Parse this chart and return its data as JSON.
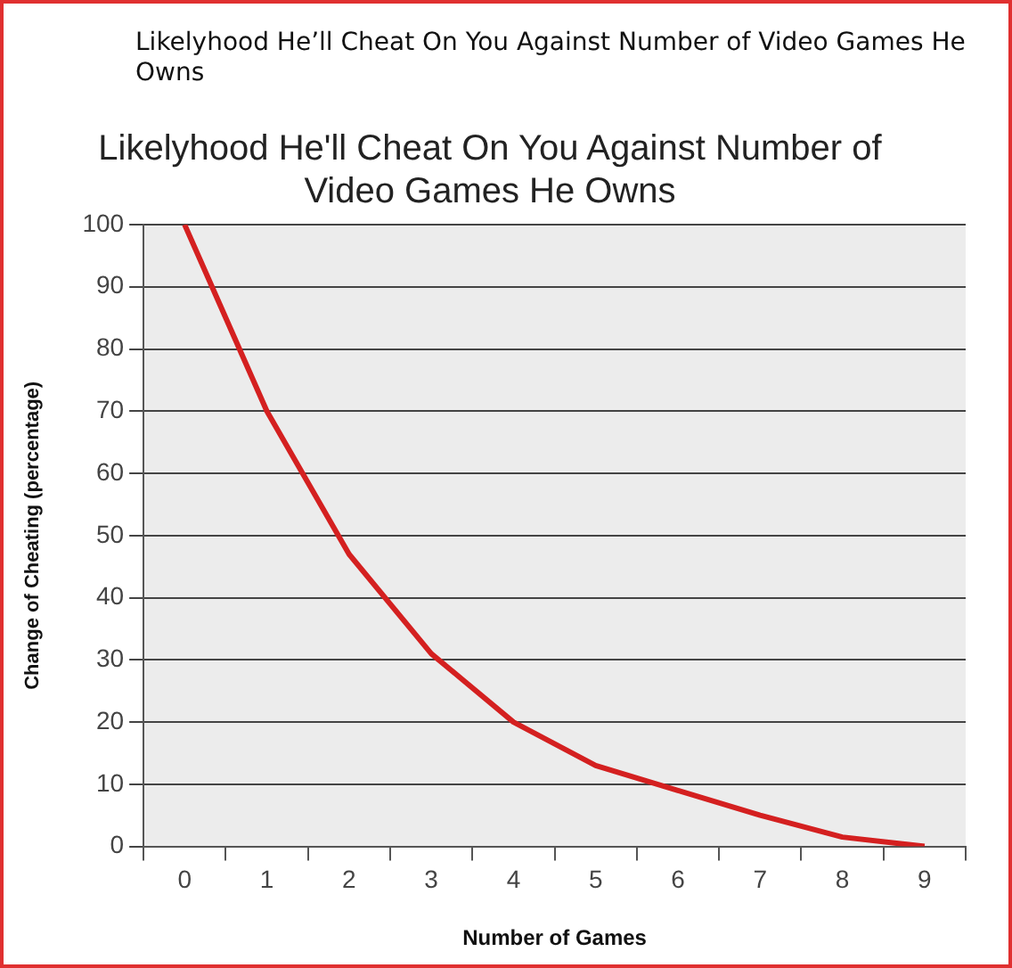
{
  "chart_data": {
    "type": "line",
    "title": "Likelyhood He'll Cheat On You Against Number of Video Games He Owns",
    "annotations": [
      "Likelyhood He’ll Cheat On You Against Number of Video Games He Owns"
    ],
    "xlabel": "Number of Games",
    "ylabel": "Change of Cheating (percentage)",
    "categories": [
      "0",
      "1",
      "2",
      "3",
      "4",
      "5",
      "6",
      "7",
      "8",
      "9"
    ],
    "series": [
      {
        "color": "#d42020",
        "values": [
          100,
          70,
          47,
          31,
          20,
          13,
          9,
          5,
          1.5,
          0
        ]
      }
    ],
    "ylim": [
      0,
      100
    ],
    "yticks": [
      0,
      10,
      20,
      30,
      40,
      50,
      60,
      70,
      80,
      90,
      100
    ],
    "grid": "y",
    "legend": false,
    "marker": "none",
    "line_style": "solid"
  }
}
